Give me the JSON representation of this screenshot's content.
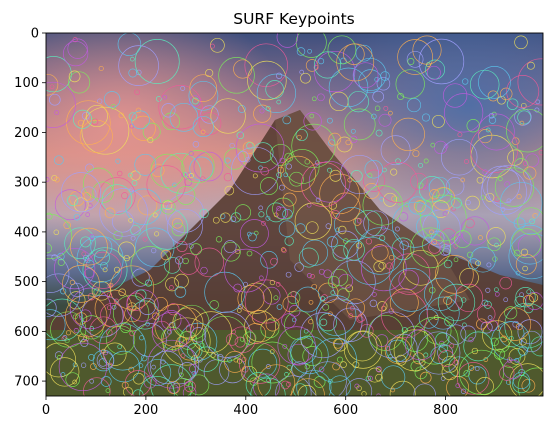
{
  "chart_data": {
    "type": "image",
    "title": "SURF Keypoints",
    "xlim": [
      0,
      995
    ],
    "ylim": [
      730,
      0
    ],
    "x_ticks": [
      0,
      200,
      400,
      600,
      800
    ],
    "y_ticks": [
      0,
      100,
      200,
      300,
      400,
      500,
      600,
      700
    ],
    "image_description_colors": {
      "sky_top": "#4a5f8f",
      "sky_warm": "#c98a7a",
      "sky_pink": "#d98a8f",
      "pyramid": "#5a3f35",
      "ground": "#4e5a2e",
      "keypoint_colors": [
        "#7cf05a",
        "#c25ae0",
        "#5ac8f0",
        "#f0e05a",
        "#f05a9a",
        "#5af0c0",
        "#a0a0ff",
        "#ffb050"
      ]
    }
  }
}
